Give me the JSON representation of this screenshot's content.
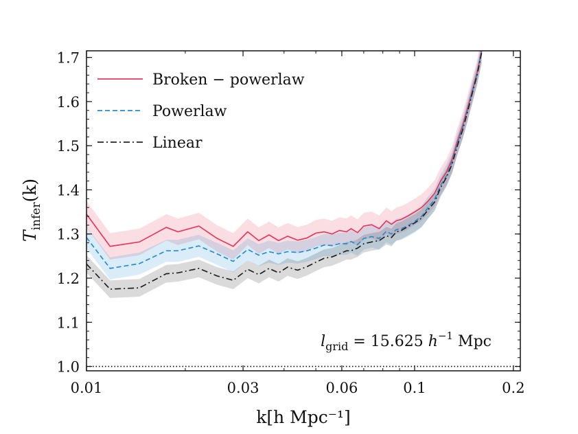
{
  "chart_data": {
    "type": "line",
    "title": "",
    "xlabel": "k[h Mpc⁻¹]",
    "ylabel": "T_infer(k)",
    "ylabel_main": "T",
    "ylabel_sub": "infer",
    "ylabel_tail": "(k)",
    "xscale": "log",
    "xlim": [
      0.01,
      0.21
    ],
    "ylim": [
      0.99,
      1.715
    ],
    "xticks": [
      {
        "value": 0.01,
        "label": "0.01"
      },
      {
        "value": 0.03,
        "label": "0.03"
      },
      {
        "value": 0.06,
        "label": "0.06"
      },
      {
        "value": 0.1,
        "label": "0.1"
      },
      {
        "value": 0.2,
        "label": "0.2"
      }
    ],
    "yticks": [
      {
        "value": 1.0,
        "label": "1.0"
      },
      {
        "value": 1.1,
        "label": "1.1"
      },
      {
        "value": 1.2,
        "label": "1.2"
      },
      {
        "value": 1.3,
        "label": "1.3"
      },
      {
        "value": 1.4,
        "label": "1.4"
      },
      {
        "value": 1.5,
        "label": "1.5"
      },
      {
        "value": 1.6,
        "label": "1.6"
      },
      {
        "value": 1.7,
        "label": "1.7"
      }
    ],
    "grid": false,
    "legend_position": "top-left",
    "reference_line": {
      "y": 1.0,
      "style": "dotted",
      "color": "#000000"
    },
    "annotation": {
      "text": "l_grid = 15.625 h⁻¹ Mpc",
      "parts": {
        "l": "l",
        "sub": "grid",
        "eq": " = 15.625 ",
        "h": "h",
        "sup": "−1",
        "unit": " Mpc"
      },
      "position": "bottom-right"
    },
    "x": [
      0.01,
      0.0118,
      0.0145,
      0.0175,
      0.019,
      0.022,
      0.025,
      0.028,
      0.031,
      0.0335,
      0.036,
      0.0385,
      0.041,
      0.044,
      0.047,
      0.05,
      0.053,
      0.056,
      0.059,
      0.062,
      0.064,
      0.067,
      0.07,
      0.074,
      0.078,
      0.082,
      0.085,
      0.088,
      0.091,
      0.095,
      0.1,
      0.105,
      0.11,
      0.115,
      0.12,
      0.125,
      0.13,
      0.135,
      0.14,
      0.145,
      0.15,
      0.155,
      0.16
    ],
    "series": [
      {
        "name": "Broken − powerlaw",
        "color": "#e8395a",
        "dash": "solid",
        "values": [
          1.345,
          1.272,
          1.282,
          1.315,
          1.305,
          1.318,
          1.29,
          1.272,
          1.305,
          1.285,
          1.298,
          1.285,
          1.295,
          1.286,
          1.291,
          1.302,
          1.305,
          1.3,
          1.308,
          1.305,
          1.312,
          1.303,
          1.318,
          1.321,
          1.312,
          1.33,
          1.322,
          1.33,
          1.333,
          1.34,
          1.35,
          1.36,
          1.375,
          1.392,
          1.42,
          1.44,
          1.468,
          1.51,
          1.545,
          1.585,
          1.625,
          1.665,
          1.715
        ],
        "band": 0.03
      },
      {
        "name": "Powerlaw",
        "color": "#1f8fd6",
        "dash": "dashed",
        "values": [
          1.292,
          1.222,
          1.233,
          1.262,
          1.262,
          1.273,
          1.255,
          1.238,
          1.265,
          1.252,
          1.26,
          1.255,
          1.26,
          1.258,
          1.262,
          1.268,
          1.275,
          1.274,
          1.278,
          1.278,
          1.283,
          1.276,
          1.29,
          1.294,
          1.29,
          1.306,
          1.3,
          1.31,
          1.312,
          1.318,
          1.328,
          1.34,
          1.36,
          1.378,
          1.41,
          1.432,
          1.462,
          1.505,
          1.54,
          1.58,
          1.622,
          1.662,
          1.712
        ],
        "band": 0.025
      },
      {
        "name": "Linear",
        "color": "#222222",
        "dash": "dashdot",
        "values": [
          1.232,
          1.175,
          1.178,
          1.21,
          1.212,
          1.222,
          1.205,
          1.195,
          1.22,
          1.208,
          1.222,
          1.212,
          1.225,
          1.218,
          1.226,
          1.236,
          1.245,
          1.248,
          1.255,
          1.262,
          1.262,
          1.268,
          1.278,
          1.282,
          1.285,
          1.296,
          1.292,
          1.305,
          1.308,
          1.316,
          1.325,
          1.336,
          1.355,
          1.372,
          1.405,
          1.428,
          1.458,
          1.5,
          1.535,
          1.577,
          1.62,
          1.66,
          1.71
        ],
        "band": 0.02
      }
    ]
  }
}
